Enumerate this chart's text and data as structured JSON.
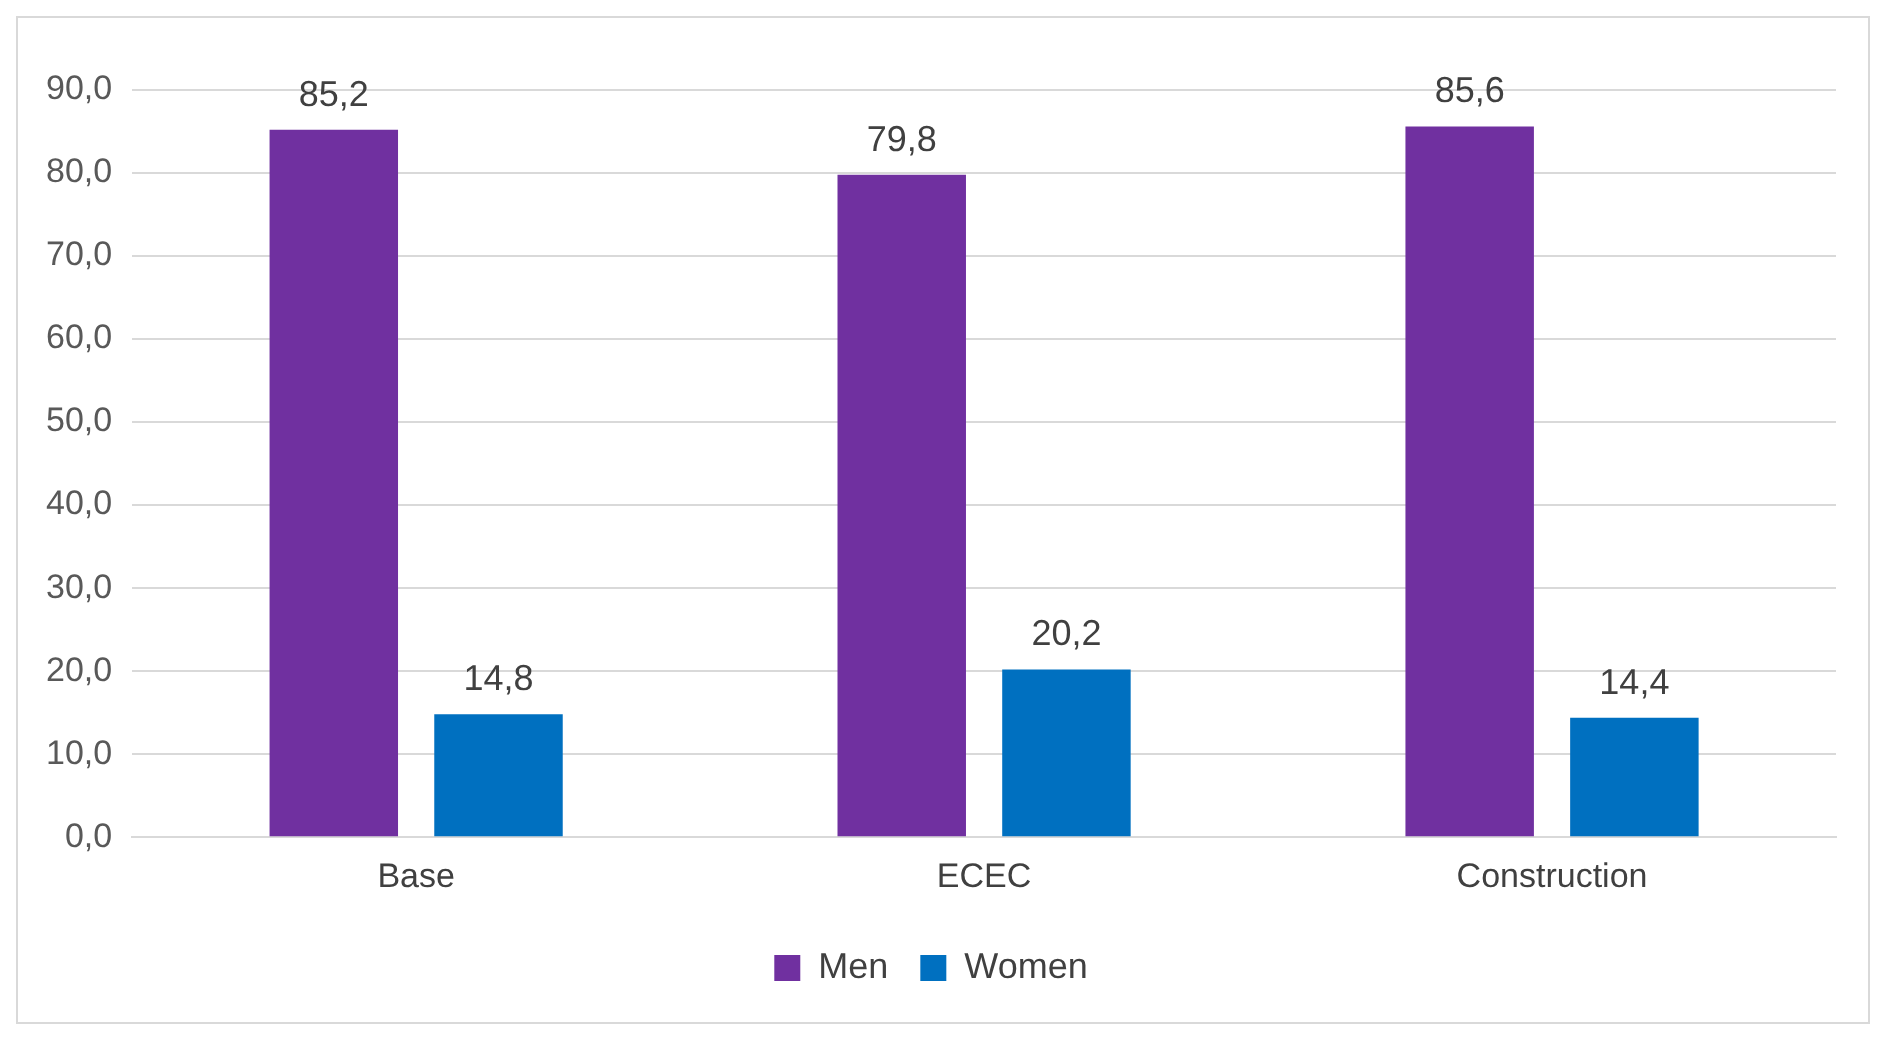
{
  "chart_data": {
    "type": "bar",
    "categories": [
      "Base",
      "ECEC",
      "Construction"
    ],
    "series": [
      {
        "name": "Men",
        "color": "#7030a0",
        "values": [
          85.2,
          79.8,
          85.6
        ],
        "value_labels": [
          "85,2",
          "79,8",
          "85,6"
        ]
      },
      {
        "name": "Women",
        "color": "#0070c0",
        "values": [
          14.8,
          20.2,
          14.4
        ],
        "value_labels": [
          "14,8",
          "20,2",
          "14,4"
        ]
      }
    ],
    "ylim": [
      0,
      90
    ],
    "yticks": [
      {
        "value": 0,
        "label": "0,0"
      },
      {
        "value": 10,
        "label": "10,0"
      },
      {
        "value": 20,
        "label": "20,0"
      },
      {
        "value": 30,
        "label": "30,0"
      },
      {
        "value": 40,
        "label": "40,0"
      },
      {
        "value": 50,
        "label": "50,0"
      },
      {
        "value": 60,
        "label": "60,0"
      },
      {
        "value": 70,
        "label": "70,0"
      },
      {
        "value": 80,
        "label": "80,0"
      },
      {
        "value": 90,
        "label": "90,0"
      }
    ],
    "grid": "y",
    "legend": "bottom"
  }
}
